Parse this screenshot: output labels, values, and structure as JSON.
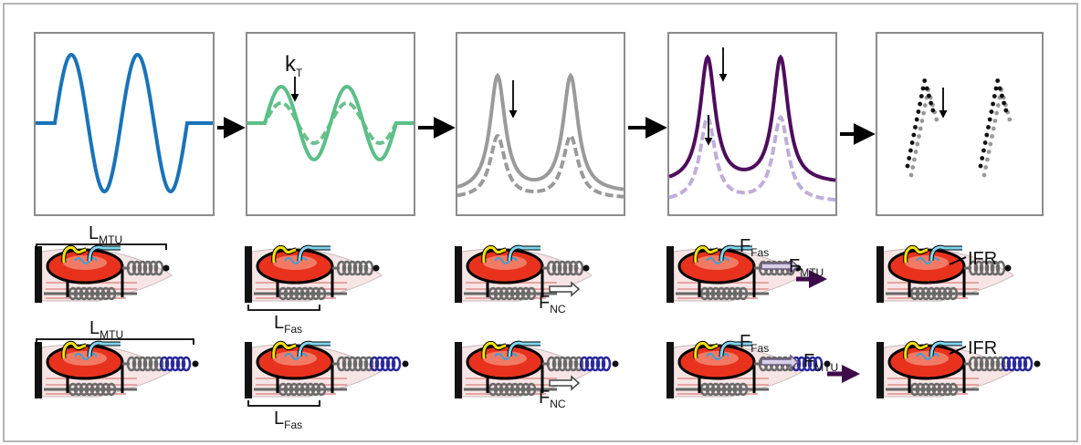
{
  "top": {
    "k_label": {
      "base": "k",
      "sub": "T"
    }
  },
  "row1": {
    "l_mtu": {
      "base": "L",
      "sub": "MTU"
    },
    "l_fas": {
      "base": "L",
      "sub": "Fas"
    },
    "f_nc": {
      "base": "F",
      "sub": "NC"
    },
    "f_fas": {
      "base": "F",
      "sub": "Fas"
    },
    "f_mtu": {
      "base": "F",
      "sub": "MTU"
    },
    "ifr": "IFR"
  },
  "row2": {
    "l_mtu": {
      "base": "L",
      "sub": "MTU"
    },
    "l_fas": {
      "base": "L",
      "sub": "Fas"
    },
    "f_nc": {
      "base": "F",
      "sub": "NC"
    },
    "f_fas": {
      "base": "F",
      "sub": "Fas"
    },
    "f_mtu": {
      "base": "F",
      "sub": "MTU"
    },
    "ifr": "IFR"
  }
}
